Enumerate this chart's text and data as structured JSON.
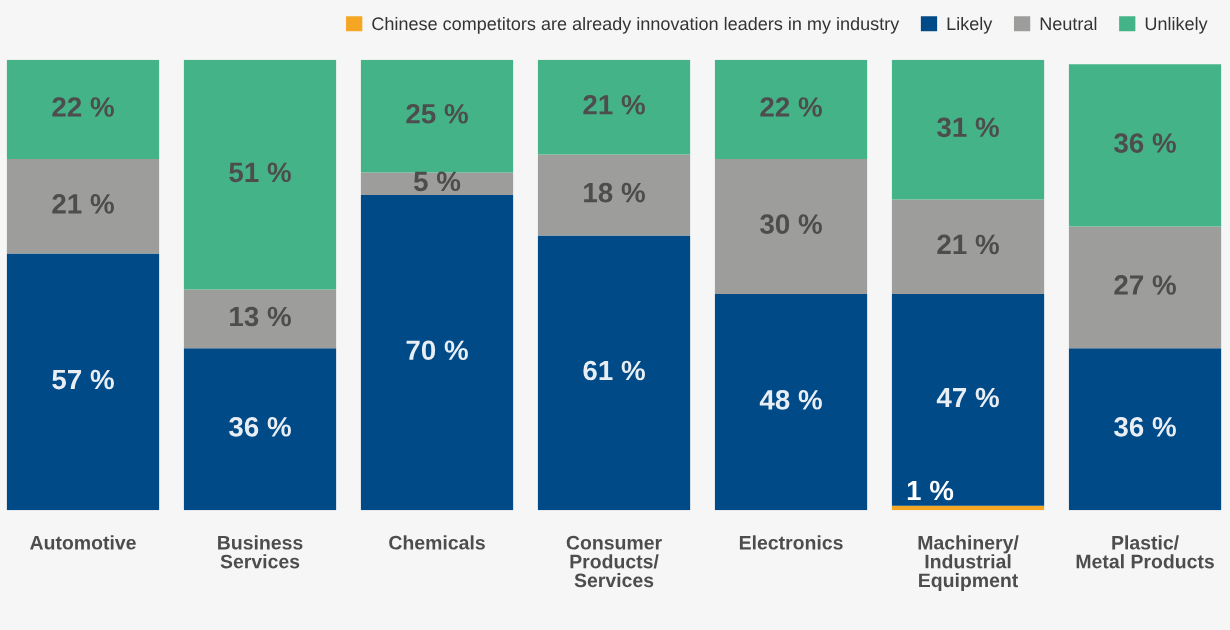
{
  "chart_data": {
    "type": "bar",
    "stacked": true,
    "legend": "top right",
    "categories": [
      "Automotive",
      "Business\nServices",
      "Chemicals",
      "Consumer\nProducts/\nServices",
      "Electronics",
      "Machinery/\nIndustrial\nEquipment",
      "Plastic/\nMetal Products"
    ],
    "series": [
      {
        "name": "Chinese competitors are already innovation leaders in my industry",
        "color": "#f5a623",
        "values": [
          null,
          null,
          null,
          null,
          null,
          1,
          null
        ],
        "value_labels": [
          null,
          null,
          null,
          null,
          null,
          "1 %",
          null
        ]
      },
      {
        "name": "Likely",
        "color": "#004a87",
        "values": [
          57,
          36,
          70,
          61,
          48,
          47,
          36
        ],
        "value_labels": [
          "57 %",
          "36 %",
          "70 %",
          "61 %",
          "48 %",
          "47 %",
          "36 %"
        ]
      },
      {
        "name": "Neutral",
        "color": "#9d9d9b",
        "values": [
          21,
          13,
          5,
          18,
          30,
          21,
          27
        ],
        "value_labels": [
          "21 %",
          "13 %",
          "5 %",
          "18 %",
          "30 %",
          "21 %",
          "27 %"
        ]
      },
      {
        "name": "Unlikely",
        "color": "#45b388",
        "values": [
          22,
          51,
          25,
          21,
          22,
          31,
          36
        ],
        "value_labels": [
          "22 %",
          "51 %",
          "25 %",
          "21 %",
          "22 %",
          "31 %",
          "36 %"
        ]
      }
    ]
  }
}
